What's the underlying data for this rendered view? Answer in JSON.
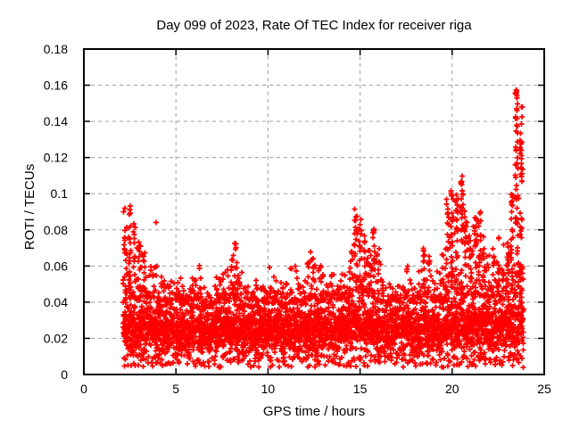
{
  "chart_data": {
    "type": "scatter",
    "title": "Day 099 of 2023, Rate Of TEC Index for receiver riga",
    "xlabel": "GPS time / hours",
    "ylabel": "ROTI / TECUs",
    "xlim": [
      0,
      25
    ],
    "ylim": [
      0,
      0.18
    ],
    "xticks": [
      0,
      5,
      10,
      15,
      20,
      25
    ],
    "yticks": [
      0,
      0.02,
      0.04,
      0.06,
      0.08,
      0.1,
      0.12,
      0.14,
      0.16,
      0.18
    ],
    "grid": true,
    "legend": "none",
    "marker": "plus",
    "marker_color": "#ff0000",
    "grid_color": "#9e9e9e",
    "axis_color": "#000000",
    "series_name": "ROTI",
    "time_range": [
      2.13,
      23.97
    ],
    "baseline_band": [
      0.008,
      0.045
    ],
    "envelope_bin_hours": 0.25,
    "envelope": [
      [
        2.25,
        0.093
      ],
      [
        2.5,
        0.095
      ],
      [
        2.75,
        0.085
      ],
      [
        3,
        0.075
      ],
      [
        3.25,
        0.07
      ],
      [
        3.5,
        0.065
      ],
      [
        3.75,
        0.062
      ],
      [
        4,
        0.062
      ],
      [
        4.25,
        0.056
      ],
      [
        4.5,
        0.052
      ],
      [
        4.75,
        0.056
      ],
      [
        5,
        0.056
      ],
      [
        5.25,
        0.057
      ],
      [
        5.5,
        0.05
      ],
      [
        5.75,
        0.052
      ],
      [
        6,
        0.056
      ],
      [
        6.25,
        0.062
      ],
      [
        6.5,
        0.052
      ],
      [
        6.75,
        0.048
      ],
      [
        7,
        0.052
      ],
      [
        7.25,
        0.058
      ],
      [
        7.5,
        0.061
      ],
      [
        7.75,
        0.065
      ],
      [
        8,
        0.068
      ],
      [
        8.25,
        0.073
      ],
      [
        8.5,
        0.06
      ],
      [
        8.75,
        0.052
      ],
      [
        9,
        0.052
      ],
      [
        9.25,
        0.055
      ],
      [
        9.5,
        0.05
      ],
      [
        9.75,
        0.052
      ],
      [
        10,
        0.062
      ],
      [
        10.25,
        0.056
      ],
      [
        10.5,
        0.056
      ],
      [
        10.75,
        0.054
      ],
      [
        11,
        0.052
      ],
      [
        11.25,
        0.062
      ],
      [
        11.5,
        0.065
      ],
      [
        11.75,
        0.06
      ],
      [
        12,
        0.056
      ],
      [
        12.25,
        0.068
      ],
      [
        12.5,
        0.072
      ],
      [
        12.75,
        0.065
      ],
      [
        13,
        0.058
      ],
      [
        13.25,
        0.056
      ],
      [
        13.5,
        0.06
      ],
      [
        13.75,
        0.058
      ],
      [
        14,
        0.062
      ],
      [
        14.25,
        0.058
      ],
      [
        14.5,
        0.072
      ],
      [
        14.75,
        0.092
      ],
      [
        15,
        0.09
      ],
      [
        15.25,
        0.078
      ],
      [
        15.5,
        0.074
      ],
      [
        15.75,
        0.086
      ],
      [
        16,
        0.07
      ],
      [
        16.25,
        0.056
      ],
      [
        16.5,
        0.052
      ],
      [
        16.75,
        0.05
      ],
      [
        17,
        0.052
      ],
      [
        17.25,
        0.056
      ],
      [
        17.5,
        0.062
      ],
      [
        17.75,
        0.056
      ],
      [
        18,
        0.052
      ],
      [
        18.25,
        0.06
      ],
      [
        18.5,
        0.075
      ],
      [
        18.75,
        0.068
      ],
      [
        19,
        0.056
      ],
      [
        19.25,
        0.06
      ],
      [
        19.5,
        0.068
      ],
      [
        19.75,
        0.098
      ],
      [
        20,
        0.104
      ],
      [
        20.25,
        0.1
      ],
      [
        20.5,
        0.116
      ],
      [
        20.75,
        0.092
      ],
      [
        21,
        0.085
      ],
      [
        21.25,
        0.09
      ],
      [
        21.5,
        0.092
      ],
      [
        21.75,
        0.08
      ],
      [
        22,
        0.068
      ],
      [
        22.25,
        0.072
      ],
      [
        22.5,
        0.076
      ],
      [
        22.75,
        0.072
      ],
      [
        23,
        0.082
      ],
      [
        23.25,
        0.1
      ],
      [
        23.5,
        0.162
      ],
      [
        23.75,
        0.15
      ]
    ],
    "outliers": [
      [
        3.92,
        0.084
      ],
      [
        8.19,
        0.0725
      ]
    ],
    "peak_value": 0.162,
    "peak_time": 23.5
  }
}
